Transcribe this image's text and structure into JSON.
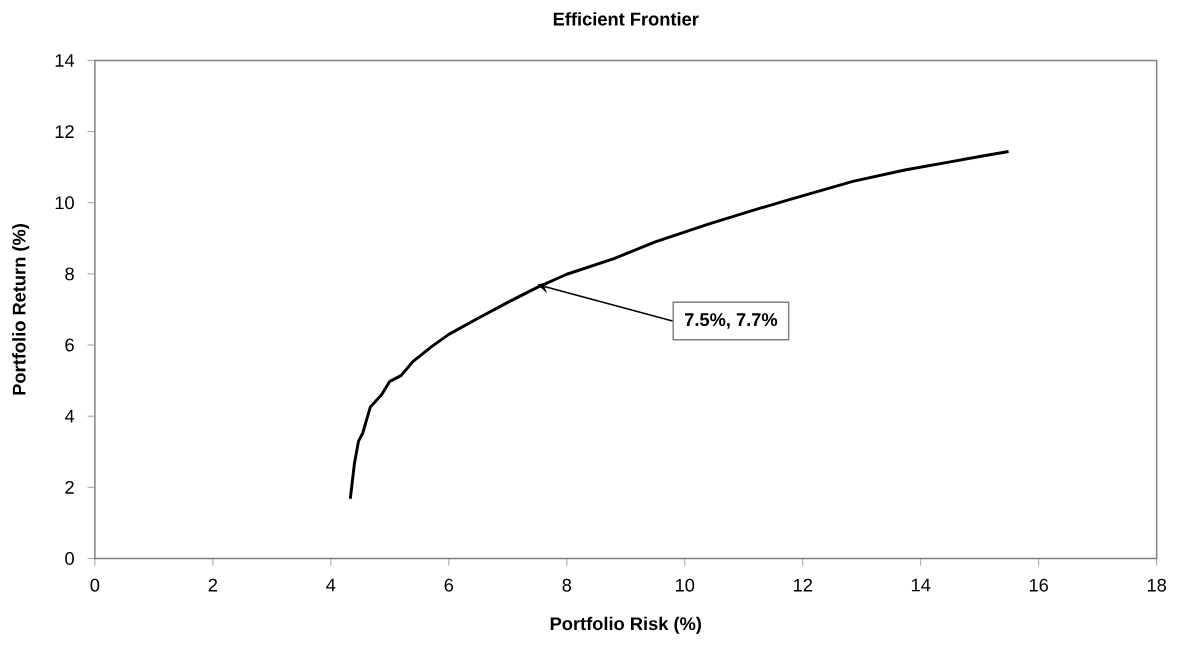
{
  "chart_data": {
    "type": "line",
    "title": "Efficient Frontier",
    "xlabel": "Portfolio Risk (%)",
    "ylabel": "Portfolio Return (%)",
    "x": [
      4.33,
      4.4,
      4.47,
      4.54,
      4.67,
      4.86,
      5.0,
      5.19,
      5.4,
      5.72,
      6.0,
      6.48,
      7.0,
      7.5,
      8.0,
      8.8,
      9.5,
      10.4,
      11.1,
      11.7,
      12.85,
      13.73,
      14.5,
      15.0,
      15.49
    ],
    "series": [
      {
        "color": "#000000",
        "values": [
          1.68,
          2.67,
          3.3,
          3.52,
          4.26,
          4.6,
          4.98,
          5.14,
          5.55,
          5.97,
          6.3,
          6.74,
          7.2,
          7.62,
          7.99,
          8.43,
          8.9,
          9.4,
          9.76,
          10.05,
          10.6,
          10.92,
          11.15,
          11.3,
          11.44
        ]
      }
    ],
    "xlim": [
      0,
      18
    ],
    "ylim": [
      0,
      14
    ],
    "xticks": [
      0,
      2,
      4,
      6,
      8,
      10,
      12,
      14,
      16,
      18
    ],
    "yticks": [
      0,
      2,
      4,
      6,
      8,
      10,
      12,
      14
    ],
    "grid": false,
    "legend": false,
    "marker": "none",
    "line_style": "solid",
    "annotations": [
      {
        "text": "7.5%, 7.7%",
        "x": 7.5,
        "y": 7.7
      }
    ]
  }
}
